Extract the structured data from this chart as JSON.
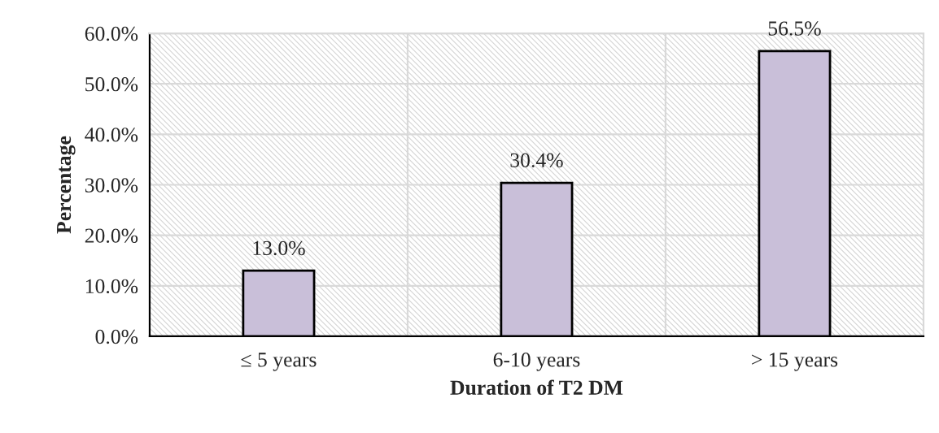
{
  "chart_data": {
    "type": "bar",
    "xlabel": "Duration of T2 DM",
    "ylabel": "Percentage",
    "categories": [
      "≤ 5 years",
      "6-10 years",
      "> 15 years"
    ],
    "values": [
      13.0,
      30.4,
      56.5
    ],
    "color": "#c9bfd9",
    "value_labels": [
      "13.0%",
      "30.4%",
      "56.5%"
    ],
    "ylim": [
      0,
      60
    ],
    "yticks": [
      {
        "value": 0,
        "label": "0.0%"
      },
      {
        "value": 10,
        "label": "10.0%"
      },
      {
        "value": 20,
        "label": "20.0%"
      },
      {
        "value": 30,
        "label": "30.0%"
      },
      {
        "value": 40,
        "label": "40.0%"
      },
      {
        "value": 50,
        "label": "50.0%"
      },
      {
        "value": 60,
        "label": "60.0%"
      }
    ],
    "grid": true,
    "legend": false
  }
}
